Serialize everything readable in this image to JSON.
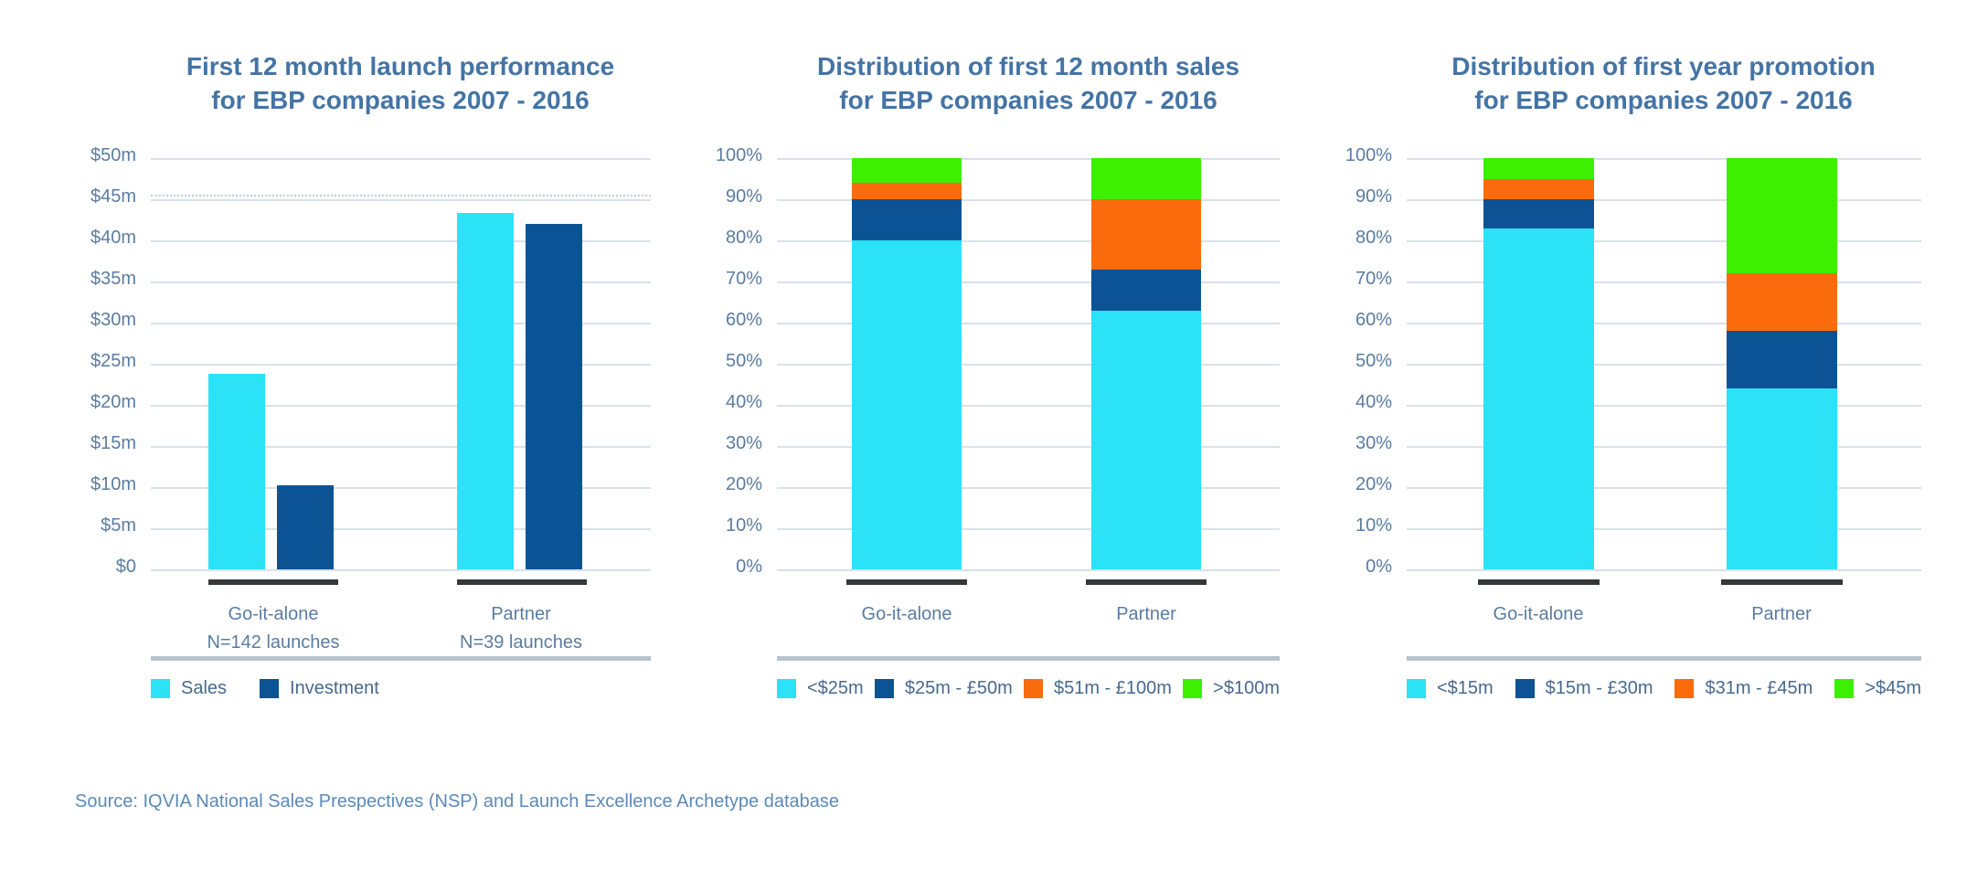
{
  "source_note": "Source: IQVIA National Sales Prespectives (NSP) and Launch Excellence Archetype database",
  "colors": {
    "cyan": "#2BE2F6",
    "navy": "#0B5394",
    "orange": "#FA6B0E",
    "green": "#3CF000",
    "title_text": "#4474A5",
    "axis_text": "#5A7CA2",
    "legend_text": "#47698E",
    "gridline": "#D9E1EA",
    "dashed_gridline": "#BCCFDF",
    "category_underline": "#35383B",
    "legend_divider": "#B6C2CE",
    "source_text": "#5C8AB8",
    "background": "#FFFFFF"
  },
  "chart_data": [
    {
      "type": "bar",
      "stacked": false,
      "title": "First 12 month launch performance for EBP companies 2007 - 2016",
      "title_lines": [
        "First 12 month launch performance",
        "for EBP companies 2007 - 2016"
      ],
      "category_lines": [
        [
          "Go-it-alone",
          "N=142 launches"
        ],
        [
          "Partner",
          "N=39 launches"
        ]
      ],
      "categories": [
        "Go-it-alone N=142 launches",
        "Partner N=39 launches"
      ],
      "y_ticks": [
        "$50m",
        "$45m",
        "$40m",
        "$35m",
        "$30m",
        "$25m",
        "$20m",
        "$15m",
        "$10m",
        "$5m",
        "$0"
      ],
      "ylim": [
        0,
        50
      ],
      "y_unit": "$m",
      "grid": "horizontal",
      "legend_position": "bottom",
      "dashed_gridline_value": 45.6,
      "series": [
        {
          "name": "Sales",
          "color": "cyan",
          "values": [
            23.8,
            43.3
          ]
        },
        {
          "name": "Investment",
          "color": "navy",
          "values": [
            10.2,
            42.0
          ]
        }
      ]
    },
    {
      "type": "bar",
      "stacked": true,
      "title": "Distribution of first 12 month sales for EBP companies 2007 - 2016",
      "title_lines": [
        "Distribution of first 12 month sales",
        "for EBP companies 2007 - 2016"
      ],
      "category_lines": [
        [
          "Go-it-alone"
        ],
        [
          "Partner"
        ]
      ],
      "categories": [
        "Go-it-alone",
        "Partner"
      ],
      "y_ticks": [
        "100%",
        "90%",
        "80%",
        "70%",
        "60%",
        "50%",
        "40%",
        "30%",
        "20%",
        "10%",
        "0%"
      ],
      "ylim": [
        0,
        100
      ],
      "y_unit": "%",
      "grid": "horizontal",
      "legend_position": "bottom",
      "series": [
        {
          "name": "<$25m",
          "color": "cyan",
          "values": [
            80,
            63
          ]
        },
        {
          "name": "$25m - £50m",
          "color": "navy",
          "values": [
            10,
            10
          ]
        },
        {
          "name": "$51m - £100m",
          "color": "orange",
          "values": [
            4,
            17
          ]
        },
        {
          "name": ">$100m",
          "color": "green",
          "values": [
            6,
            10
          ]
        }
      ]
    },
    {
      "type": "bar",
      "stacked": true,
      "title": "Distribution of first year promotion for EBP companies 2007 - 2016",
      "title_lines": [
        "Distribution of first year promotion",
        "for EBP companies 2007 - 2016"
      ],
      "category_lines": [
        [
          "Go-it-alone"
        ],
        [
          "Partner"
        ]
      ],
      "categories": [
        "Go-it-alone",
        "Partner"
      ],
      "y_ticks": [
        "100%",
        "90%",
        "80%",
        "70%",
        "60%",
        "50%",
        "40%",
        "30%",
        "20%",
        "10%",
        "0%"
      ],
      "ylim": [
        0,
        100
      ],
      "y_unit": "%",
      "grid": "horizontal",
      "legend_position": "bottom",
      "series": [
        {
          "name": "<$15m",
          "color": "cyan",
          "values": [
            83,
            44
          ]
        },
        {
          "name": "$15m - £30m",
          "color": "navy",
          "values": [
            7,
            14
          ]
        },
        {
          "name": "$31m - £45m",
          "color": "orange",
          "values": [
            5,
            14
          ]
        },
        {
          "name": ">$45m",
          "color": "green",
          "values": [
            5,
            28
          ]
        }
      ]
    }
  ]
}
